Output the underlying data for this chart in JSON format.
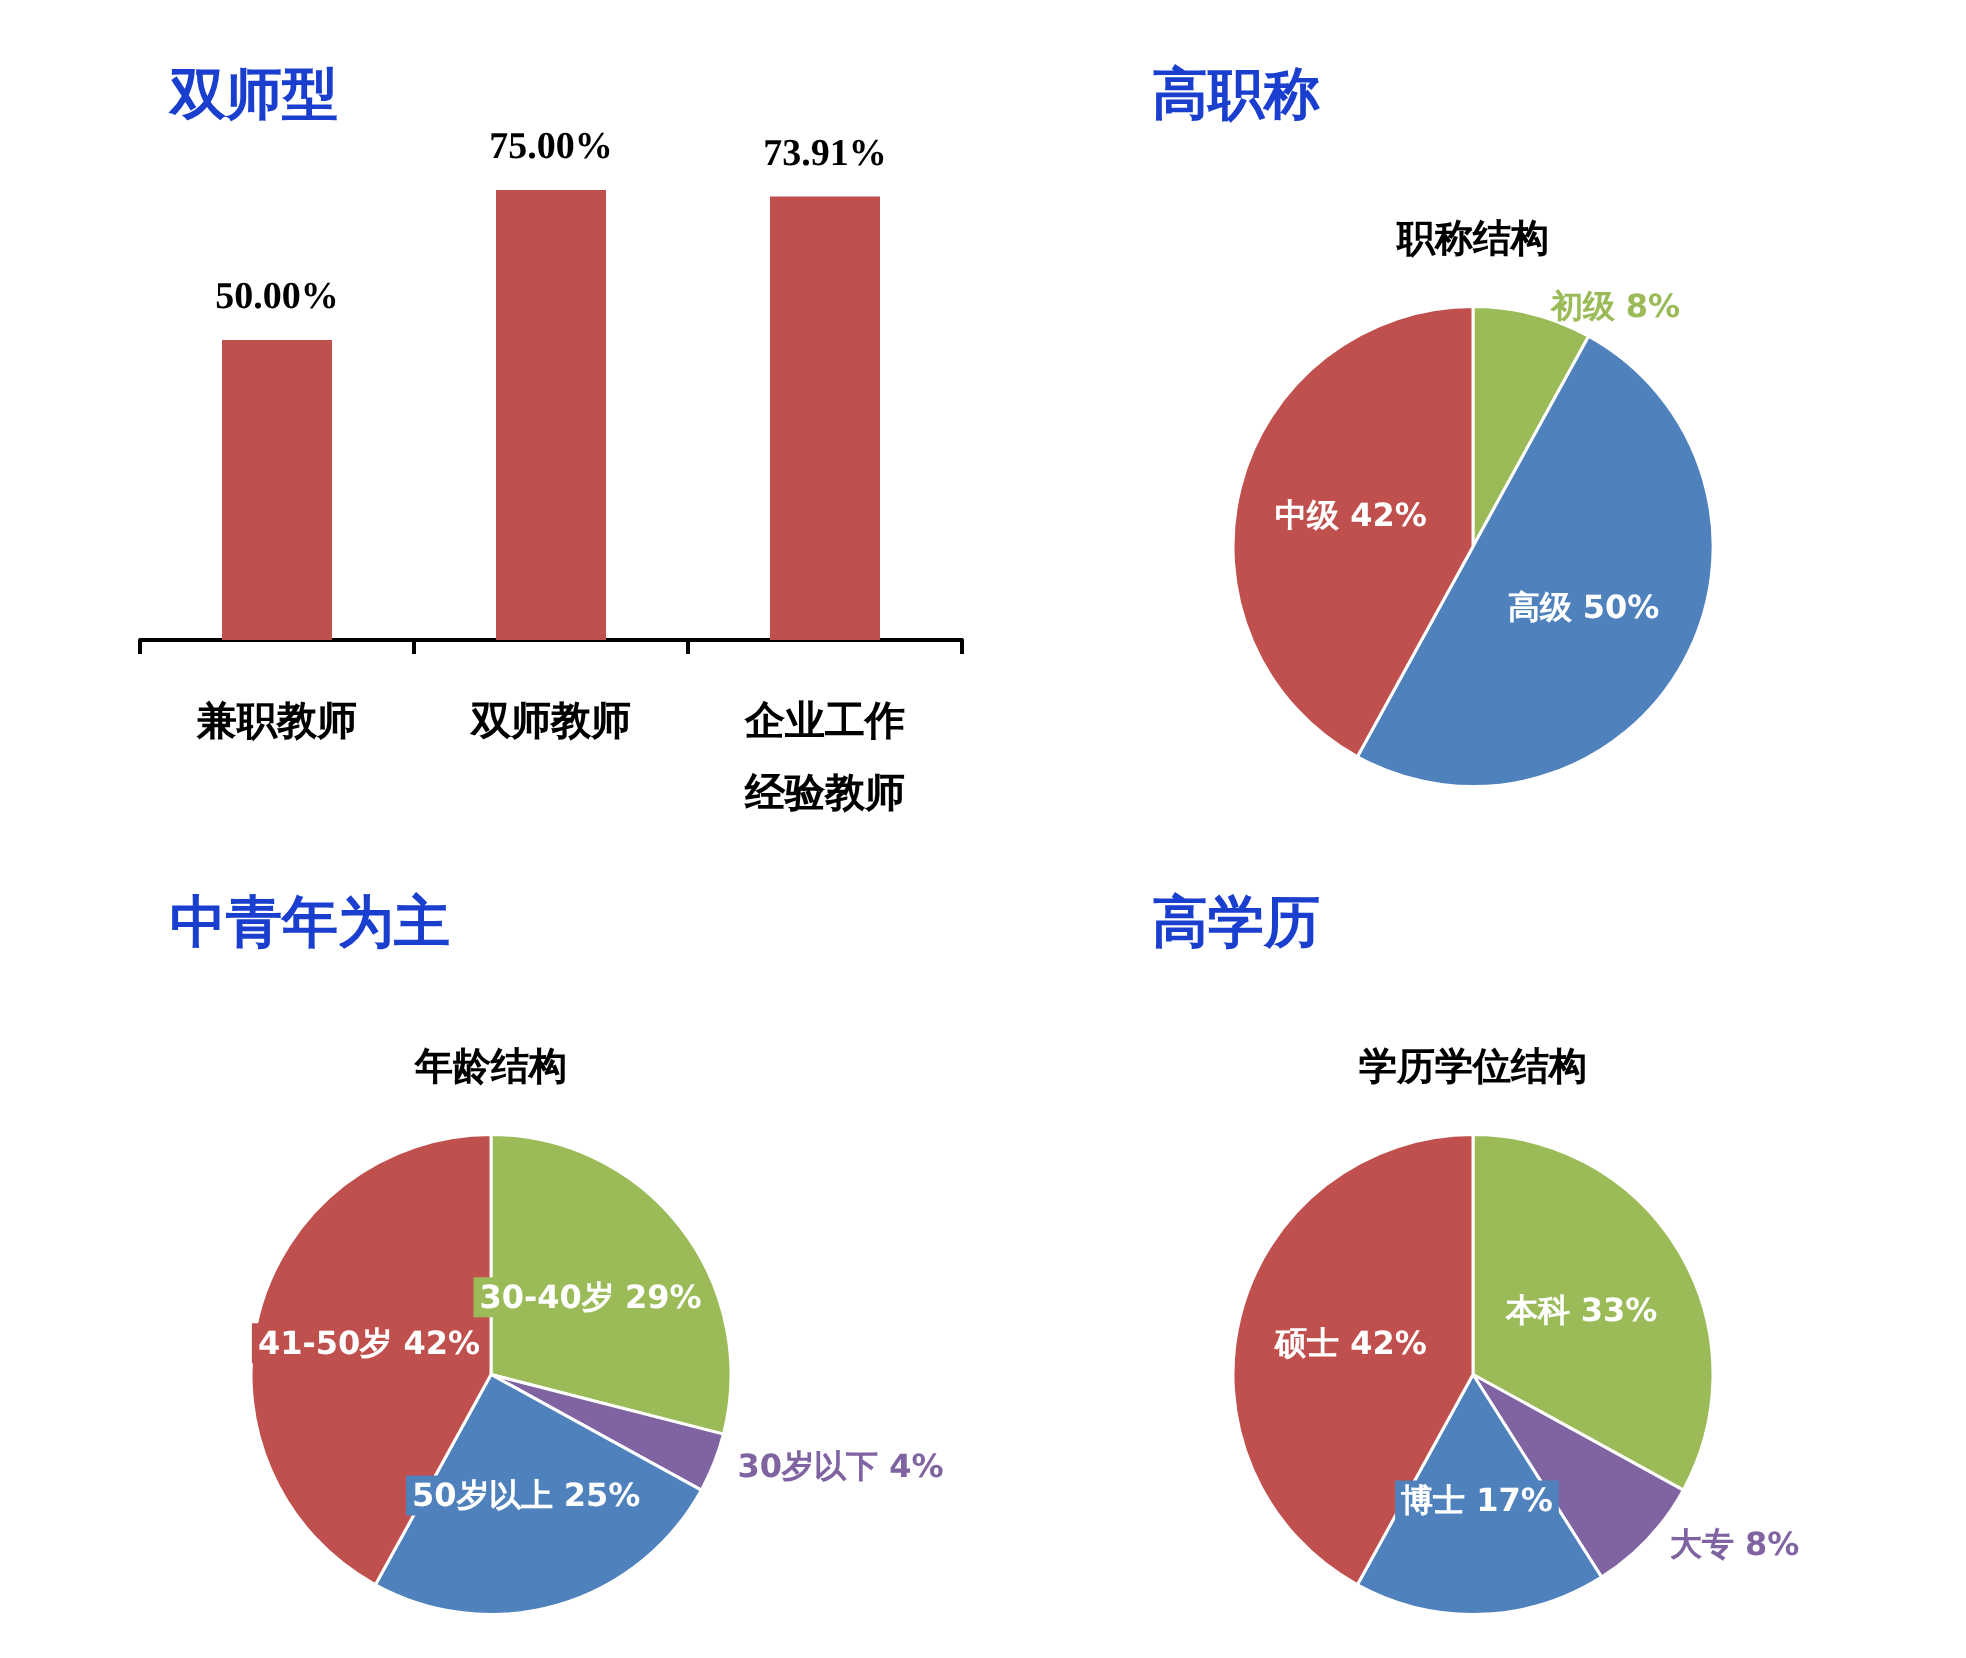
{
  "chart_data": [
    {
      "type": "bar",
      "title": "双师型",
      "categories": [
        "兼职教师",
        "双师教师",
        "企业工作经验教师"
      ],
      "values": [
        50,
        75,
        73.91
      ],
      "value_labels": [
        "50.00%",
        "75.00%",
        "73.91%"
      ],
      "color": "#c0504d",
      "grid": false,
      "legend": false
    },
    {
      "type": "pie",
      "title": "高职称",
      "subtitle": "职称结构",
      "categories": [
        "初级",
        "高级",
        "中级"
      ],
      "values": [
        8,
        50,
        42
      ],
      "value_labels": [
        "8%",
        "50%",
        "42%"
      ],
      "colors": [
        "#9bbb59",
        "#4f81bd",
        "#c0504d"
      ],
      "legend": false
    },
    {
      "type": "pie",
      "title": "中青年为主",
      "subtitle": "年龄结构",
      "categories": [
        "30-40岁",
        "30岁以下",
        "50岁以上",
        "41-50岁"
      ],
      "values": [
        29,
        4,
        25,
        42
      ],
      "value_labels": [
        "29%",
        "4%",
        "25%",
        "42%"
      ],
      "colors": [
        "#9bbb59",
        "#8064a2",
        "#4f81bd",
        "#c0504d"
      ],
      "legend": false
    },
    {
      "type": "pie",
      "title": "高学历",
      "subtitle": "学历学位结构",
      "categories": [
        "本科",
        "大专",
        "博士",
        "硕士"
      ],
      "values": [
        33,
        8,
        17,
        42
      ],
      "value_labels": [
        "33%",
        "8%",
        "17%",
        "42%"
      ],
      "colors": [
        "#9bbb59",
        "#8064a2",
        "#4f81bd",
        "#c0504d"
      ],
      "legend": false
    }
  ]
}
